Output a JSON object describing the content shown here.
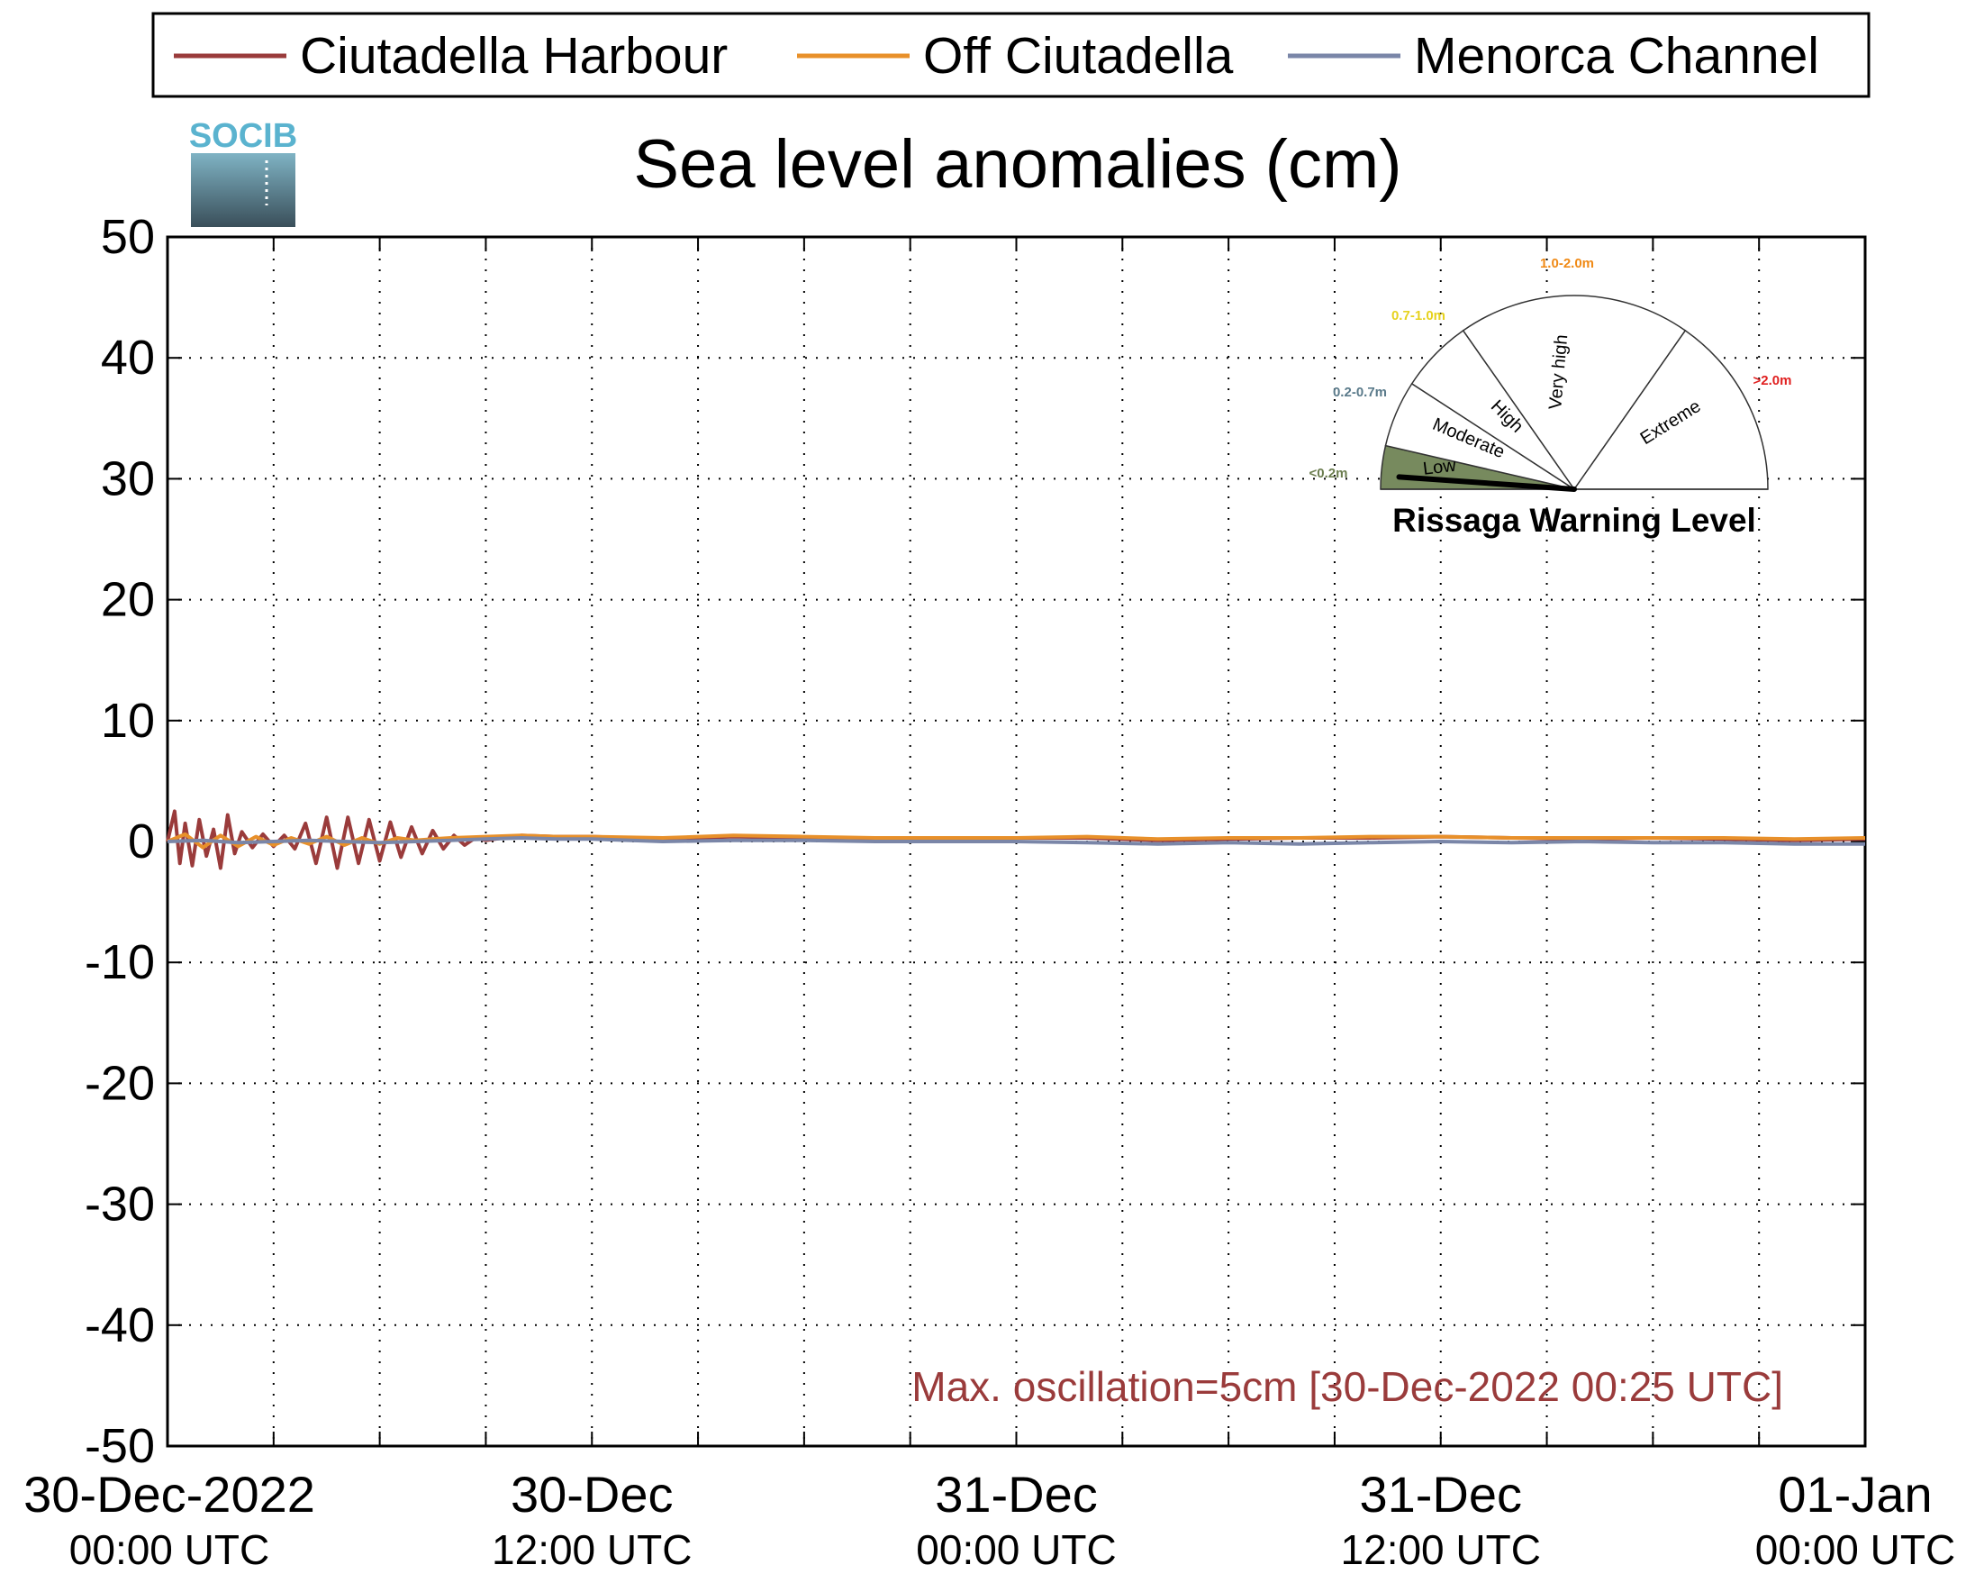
{
  "chart_data": {
    "type": "line",
    "title": "Sea level anomalies (cm)",
    "logo_text": "SOCIB",
    "ylim": [
      -50,
      50
    ],
    "yticks": [
      50,
      40,
      30,
      20,
      10,
      0,
      -10,
      -20,
      -30,
      -40,
      -50
    ],
    "ytick_labels": [
      "50",
      "40",
      "30",
      "20",
      "10",
      "0",
      "-10",
      "-20",
      "-30",
      "-40",
      "-50"
    ],
    "xlim_hours": [
      0,
      48
    ],
    "xlabels": [
      {
        "hour": 0,
        "line1": "30-Dec-2022",
        "line2": "00:00 UTC"
      },
      {
        "hour": 12,
        "line1": "30-Dec",
        "line2": "12:00 UTC"
      },
      {
        "hour": 24,
        "line1": "31-Dec",
        "line2": "00:00 UTC"
      },
      {
        "hour": 36,
        "line1": "31-Dec",
        "line2": "12:00 UTC"
      },
      {
        "hour": 48,
        "line1": "01-Jan",
        "line2": "00:00 UTC"
      }
    ],
    "grid": "dotted",
    "legend": {
      "position": "top",
      "entries": [
        "Ciutadella Harbour",
        "Off Ciutadella",
        "Menorca Channel"
      ]
    },
    "series": [
      {
        "name": "Ciutadella Harbour",
        "color": "#9a3b3b",
        "x_hours": [
          0,
          0.2,
          0.35,
          0.5,
          0.7,
          0.9,
          1.1,
          1.3,
          1.5,
          1.7,
          1.9,
          2.1,
          2.4,
          2.7,
          3.0,
          3.3,
          3.6,
          3.9,
          4.2,
          4.5,
          4.8,
          5.1,
          5.4,
          5.7,
          6.0,
          6.3,
          6.6,
          6.9,
          7.2,
          7.5,
          7.8,
          8.1,
          8.4,
          8.7,
          9.0,
          9.5,
          10,
          11,
          12,
          14,
          16,
          18,
          20,
          22,
          24,
          26,
          28,
          30,
          32,
          34,
          36,
          38,
          40,
          42,
          44,
          46,
          48
        ],
        "values": [
          0,
          2.5,
          -1.8,
          1.5,
          -2.0,
          1.8,
          -1.2,
          1.0,
          -2.2,
          2.2,
          -1.0,
          0.8,
          -0.5,
          0.6,
          -0.4,
          0.5,
          -0.6,
          1.5,
          -1.8,
          2.0,
          -2.2,
          2.0,
          -1.8,
          1.8,
          -1.6,
          1.6,
          -1.3,
          1.2,
          -1.0,
          0.9,
          -0.6,
          0.5,
          -0.3,
          0.3,
          0.1,
          0.3,
          0.5,
          0.4,
          0.4,
          0.2,
          0.4,
          0.3,
          0.3,
          0.2,
          0.3,
          0.3,
          0.1,
          0.2,
          0.3,
          0.3,
          0.4,
          0.3,
          0.2,
          0.3,
          0.2,
          0.1,
          0.2
        ]
      },
      {
        "name": "Off Ciutadella",
        "color": "#e8902a",
        "x_hours": [
          0,
          0.5,
          1.0,
          1.5,
          2.0,
          2.5,
          3.0,
          3.5,
          4.0,
          4.5,
          5.0,
          5.5,
          6.0,
          6.5,
          7.0,
          7.5,
          8.0,
          9.0,
          10,
          11,
          12,
          14,
          16,
          18,
          20,
          22,
          24,
          26,
          28,
          30,
          32,
          34,
          36,
          38,
          40,
          42,
          44,
          46,
          48
        ],
        "values": [
          0,
          0.6,
          -0.5,
          0.5,
          -0.4,
          0.4,
          -0.3,
          0.3,
          -0.2,
          0.4,
          -0.3,
          0.3,
          -0.2,
          0.3,
          0.1,
          0.2,
          0.3,
          0.4,
          0.5,
          0.4,
          0.4,
          0.3,
          0.5,
          0.4,
          0.3,
          0.3,
          0.3,
          0.4,
          0.2,
          0.3,
          0.3,
          0.4,
          0.4,
          0.3,
          0.3,
          0.3,
          0.3,
          0.2,
          0.3
        ]
      },
      {
        "name": "Menorca Channel",
        "color": "#7a86a8",
        "x_hours": [
          0,
          1,
          2,
          3,
          4,
          5,
          6,
          7,
          8,
          9,
          10,
          11,
          12,
          14,
          16,
          18,
          20,
          22,
          24,
          26,
          28,
          30,
          32,
          34,
          36,
          38,
          40,
          42,
          44,
          46,
          48
        ],
        "values": [
          0,
          0.1,
          -0.1,
          0.0,
          0.1,
          0.0,
          -0.1,
          0.0,
          0.1,
          0.2,
          0.3,
          0.2,
          0.2,
          0.0,
          0.1,
          0.1,
          0.0,
          0.0,
          0.0,
          -0.1,
          -0.2,
          -0.1,
          -0.2,
          -0.1,
          0.0,
          -0.1,
          0.0,
          -0.1,
          -0.1,
          -0.2,
          -0.2
        ]
      }
    ],
    "annotation": {
      "text": "Max. oscillation=5cm [30-Dec-2022 00:25 UTC]",
      "color": "#9a3b3b"
    },
    "warning_gauge": {
      "title": "Rissaga Warning Level",
      "sectors": [
        {
          "label": "Low",
          "range": "<0.2m",
          "color": "#778a5e",
          "range_color": "#6b7d4f",
          "active": true
        },
        {
          "label": "Moderate",
          "range": "0.2-0.7m",
          "color": "#ffffff",
          "range_color": "#5a7a8a",
          "active": false
        },
        {
          "label": "High",
          "range": "0.7-1.0m",
          "color": "#ffffff",
          "range_color": "#e6d21e",
          "active": false
        },
        {
          "label": "Very high",
          "range": "1.0-2.0m",
          "color": "#ffffff",
          "range_color": "#f08a16",
          "active": false
        },
        {
          "label": "Extreme",
          "range": ">2.0m",
          "color": "#ffffff",
          "range_color": "#e02020",
          "active": false
        }
      ],
      "needle_level": "Low"
    }
  }
}
